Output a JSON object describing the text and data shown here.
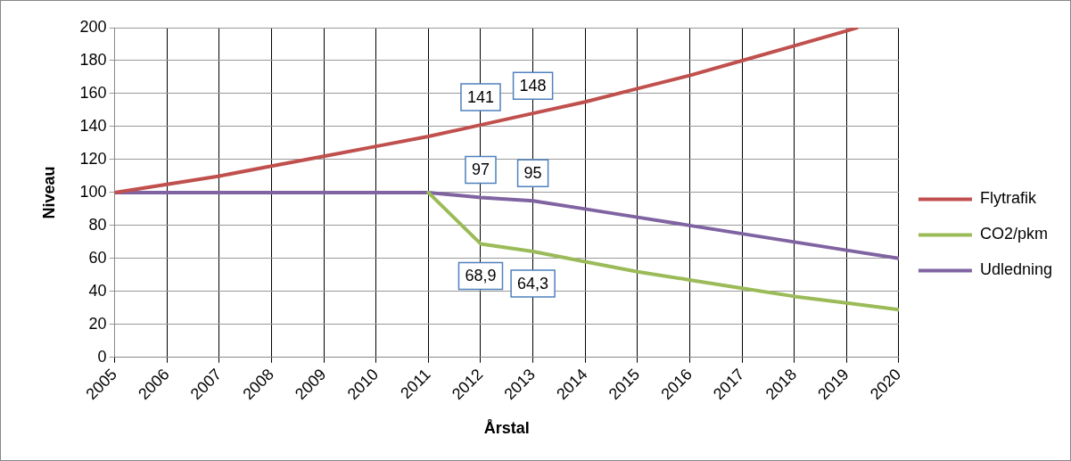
{
  "chart_data": {
    "type": "line",
    "xlabel": "Årstal",
    "ylabel": "Niveau",
    "xlim": [
      2005,
      2020
    ],
    "xticks": [
      2005,
      2006,
      2007,
      2008,
      2009,
      2010,
      2011,
      2012,
      2013,
      2014,
      2015,
      2016,
      2017,
      2018,
      2019,
      2020
    ],
    "ylim": [
      0,
      200
    ],
    "yticks": [
      0,
      20,
      40,
      60,
      80,
      100,
      120,
      140,
      160,
      180,
      200
    ],
    "grid": true,
    "legend": "right",
    "marker": "none",
    "line_style": "solid",
    "series": [
      {
        "name": "Flytrafik",
        "color": "#c0504d",
        "x": [
          2005,
          2006,
          2007,
          2008,
          2009,
          2010,
          2011,
          2012,
          2013,
          2014,
          2015,
          2016,
          2017,
          2018,
          2019,
          2019.2
        ],
        "values": [
          100,
          105,
          110,
          116,
          122,
          128,
          134,
          141,
          148,
          155,
          163,
          171,
          180,
          189,
          198,
          200
        ],
        "value_labels": [
          null,
          null,
          null,
          null,
          null,
          null,
          null,
          "141",
          "148",
          null,
          null,
          null,
          null,
          null,
          null,
          null
        ]
      },
      {
        "name": "CO2/pkm",
        "color": "#9bbb59",
        "x": [
          2011,
          2012,
          2013,
          2014,
          2015,
          2016,
          2017,
          2018,
          2019,
          2020
        ],
        "values": [
          100,
          68.9,
          64.3,
          58,
          52,
          47,
          42,
          37,
          33,
          29
        ],
        "value_labels": [
          null,
          "68,9",
          "64,3",
          null,
          null,
          null,
          null,
          null,
          null,
          null
        ]
      },
      {
        "name": "Udledning",
        "color": "#8064a2",
        "x": [
          2005,
          2006,
          2007,
          2008,
          2009,
          2010,
          2011,
          2012,
          2013,
          2014,
          2015,
          2016,
          2017,
          2018,
          2019,
          2020
        ],
        "values": [
          100,
          100,
          100,
          100,
          100,
          100,
          100,
          97,
          95,
          90,
          85,
          80,
          75,
          70,
          65,
          60
        ],
        "value_labels": [
          null,
          null,
          null,
          null,
          null,
          null,
          null,
          "97",
          "95",
          null,
          null,
          null,
          null,
          null,
          null,
          null
        ]
      }
    ]
  }
}
